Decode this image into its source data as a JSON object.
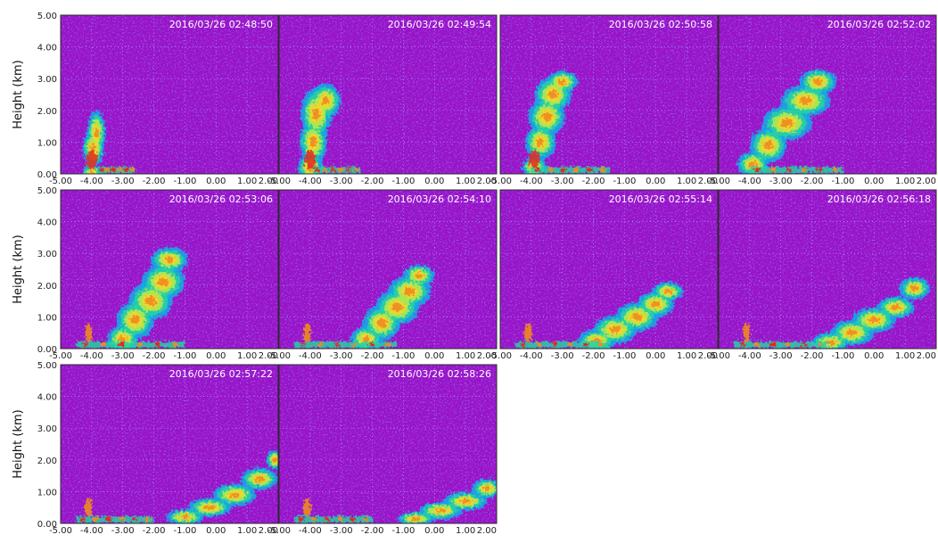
{
  "chart_data": {
    "type": "heatmap",
    "colors": {
      "background": "#9a12c8",
      "scale": [
        "#3a3ce0",
        "#19a6e6",
        "#26d2a4",
        "#b8e84a",
        "#f2d630",
        "#f08a1e",
        "#e8281c"
      ]
    },
    "layout": "small-multiples grid, 3 rows x 4 columns",
    "ylabel": "Height (km)",
    "ylim": [
      0.0,
      5.0
    ],
    "xlim": [
      -5.0,
      2.0
    ],
    "y_ticks": [
      "5.00",
      "4.00",
      "3.00",
      "2.00",
      "1.00",
      "0.00"
    ],
    "x_ticks": [
      "-5.00",
      "-4.00",
      "-3.00",
      "-2.00",
      "-1.00",
      "0.00",
      "1.00",
      "2.00"
    ],
    "panels": [
      {
        "timestamp": "2016/03/26 02:48:50",
        "plume": [
          [
            -4.0,
            0.0,
            0.3,
            0.35
          ],
          [
            -3.95,
            0.8,
            0.35,
            0.6
          ],
          [
            -3.85,
            1.3,
            0.3,
            0.7
          ]
        ],
        "surface_band": [
          -3.8,
          -2.6
        ]
      },
      {
        "timestamp": "2016/03/26 02:49:54",
        "plume": [
          [
            -4.0,
            0.2,
            0.4,
            0.45
          ],
          [
            -3.9,
            1.0,
            0.45,
            0.7
          ],
          [
            -3.8,
            1.9,
            0.5,
            0.8
          ],
          [
            -3.5,
            2.3,
            0.5,
            0.55
          ]
        ],
        "surface_band": [
          -3.9,
          -2.4
        ]
      },
      {
        "timestamp": "2016/03/26 02:50:58",
        "plume": [
          [
            -3.9,
            0.2,
            0.4,
            0.35
          ],
          [
            -3.7,
            1.0,
            0.5,
            0.55
          ],
          [
            -3.5,
            1.8,
            0.6,
            0.6
          ],
          [
            -3.3,
            2.5,
            0.6,
            0.55
          ],
          [
            -3.0,
            2.9,
            0.5,
            0.35
          ]
        ],
        "surface_band": [
          -4.0,
          -1.5
        ]
      },
      {
        "timestamp": "2016/03/26 02:52:02",
        "plume": [
          [
            -3.9,
            0.3,
            0.5,
            0.4
          ],
          [
            -3.4,
            0.9,
            0.6,
            0.55
          ],
          [
            -2.8,
            1.6,
            0.8,
            0.55
          ],
          [
            -2.2,
            2.3,
            0.8,
            0.5
          ],
          [
            -1.8,
            2.9,
            0.6,
            0.4
          ]
        ],
        "surface_band": [
          -4.0,
          -1.0
        ]
      },
      {
        "timestamp": "2016/03/26 02:53:06",
        "plume": [
          [
            -3.0,
            0.3,
            0.5,
            0.45
          ],
          [
            -2.6,
            0.9,
            0.6,
            0.6
          ],
          [
            -2.1,
            1.5,
            0.7,
            0.6
          ],
          [
            -1.7,
            2.1,
            0.7,
            0.55
          ],
          [
            -1.5,
            2.8,
            0.6,
            0.4
          ]
        ],
        "surface_band": [
          -4.5,
          -1.0
        ]
      },
      {
        "timestamp": "2016/03/26 02:54:10",
        "plume": [
          [
            -2.2,
            0.3,
            0.5,
            0.4
          ],
          [
            -1.7,
            0.8,
            0.6,
            0.55
          ],
          [
            -1.2,
            1.3,
            0.7,
            0.55
          ],
          [
            -0.8,
            1.8,
            0.7,
            0.5
          ],
          [
            -0.5,
            2.3,
            0.5,
            0.35
          ]
        ],
        "surface_band": [
          -4.5,
          -1.2
        ]
      },
      {
        "timestamp": "2016/03/26 02:55:14",
        "plume": [
          [
            -1.9,
            0.25,
            0.6,
            0.35
          ],
          [
            -1.3,
            0.6,
            0.7,
            0.45
          ],
          [
            -0.6,
            1.0,
            0.7,
            0.45
          ],
          [
            0.0,
            1.4,
            0.6,
            0.4
          ],
          [
            0.4,
            1.8,
            0.5,
            0.3
          ]
        ],
        "surface_band": [
          -4.5,
          -1.5
        ]
      },
      {
        "timestamp": "2016/03/26 02:56:18",
        "plume": [
          [
            -1.4,
            0.2,
            0.6,
            0.3
          ],
          [
            -0.7,
            0.5,
            0.7,
            0.4
          ],
          [
            0.0,
            0.9,
            0.7,
            0.4
          ],
          [
            0.7,
            1.3,
            0.6,
            0.35
          ],
          [
            1.3,
            1.9,
            0.5,
            0.35
          ]
        ],
        "surface_band": [
          -4.5,
          -1.5
        ]
      },
      {
        "timestamp": "2016/03/26 02:57:22",
        "plume": [
          [
            -1.0,
            0.2,
            0.6,
            0.25
          ],
          [
            -0.2,
            0.5,
            0.7,
            0.3
          ],
          [
            0.6,
            0.9,
            0.7,
            0.35
          ],
          [
            1.4,
            1.4,
            0.6,
            0.35
          ],
          [
            1.9,
            2.0,
            0.3,
            0.3
          ]
        ],
        "surface_band": [
          -4.5,
          -2.0
        ]
      },
      {
        "timestamp": "2016/03/26 02:58:26",
        "plume": [
          [
            -0.6,
            0.15,
            0.6,
            0.22
          ],
          [
            0.2,
            0.4,
            0.7,
            0.28
          ],
          [
            1.0,
            0.7,
            0.7,
            0.3
          ],
          [
            1.7,
            1.1,
            0.5,
            0.3
          ]
        ],
        "surface_band": [
          -4.5,
          -2.0
        ]
      }
    ]
  }
}
